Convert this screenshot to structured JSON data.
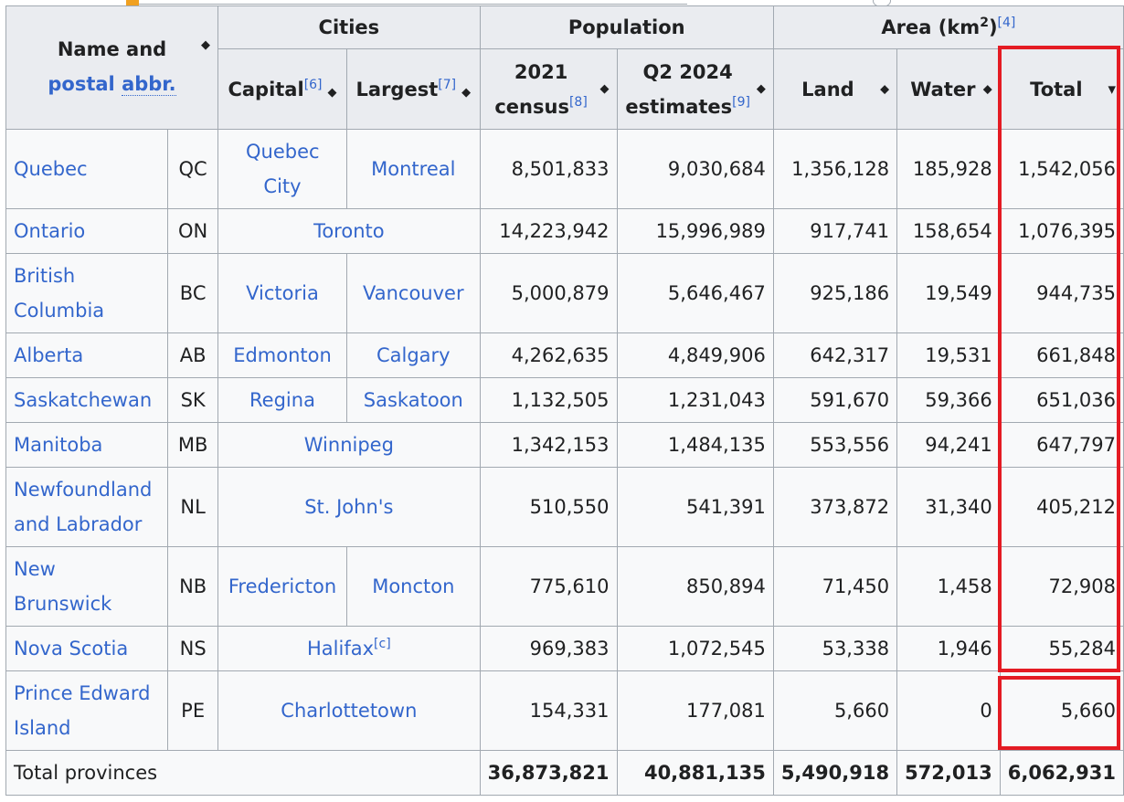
{
  "header": {
    "name_col": {
      "line1": "Name and",
      "line2a": "postal",
      "line2b": "abbr.",
      "sort_icon": "sort-both-icon"
    },
    "cities": "Cities",
    "population": "Population",
    "area": "Area (km",
    "area_sup": "2",
    "area_ref": "[4]",
    "capital": "Capital",
    "capital_ref": "[6]",
    "largest": "Largest",
    "largest_ref": "[7]",
    "census_line1": "2021",
    "census_line2": "census",
    "census_ref": "[8]",
    "estimate_line1": "Q2 2024",
    "estimate_line2": "estimates",
    "estimate_ref": "[9]",
    "land": "Land",
    "water": "Water",
    "total": "Total"
  },
  "rows": [
    {
      "name": "Quebec",
      "abbr": "QC",
      "capital": "Quebec City",
      "largest": "Montreal",
      "census": "8,501,833",
      "estimate": "9,030,684",
      "land": "1,356,128",
      "water": "185,928",
      "total": "1,542,056"
    },
    {
      "name": "Ontario",
      "abbr": "ON",
      "city": "Toronto",
      "census": "14,223,942",
      "estimate": "15,996,989",
      "land": "917,741",
      "water": "158,654",
      "total": "1,076,395"
    },
    {
      "name": "British Columbia",
      "abbr": "BC",
      "capital": "Victoria",
      "largest": "Vancouver",
      "census": "5,000,879",
      "estimate": "5,646,467",
      "land": "925,186",
      "water": "19,549",
      "total": "944,735"
    },
    {
      "name": "Alberta",
      "abbr": "AB",
      "capital": "Edmonton",
      "largest": "Calgary",
      "census": "4,262,635",
      "estimate": "4,849,906",
      "land": "642,317",
      "water": "19,531",
      "total": "661,848"
    },
    {
      "name": "Saskatchewan",
      "abbr": "SK",
      "capital": "Regina",
      "largest": "Saskatoon",
      "census": "1,132,505",
      "estimate": "1,231,043",
      "land": "591,670",
      "water": "59,366",
      "total": "651,036"
    },
    {
      "name": "Manitoba",
      "abbr": "MB",
      "city": "Winnipeg",
      "census": "1,342,153",
      "estimate": "1,484,135",
      "land": "553,556",
      "water": "94,241",
      "total": "647,797"
    },
    {
      "name": "Newfoundland and Labrador",
      "abbr": "NL",
      "city": "St. John's",
      "census": "510,550",
      "estimate": "541,391",
      "land": "373,872",
      "water": "31,340",
      "total": "405,212"
    },
    {
      "name": "New Brunswick",
      "abbr": "NB",
      "capital": "Fredericton",
      "largest": "Moncton",
      "census": "775,610",
      "estimate": "850,894",
      "land": "71,450",
      "water": "1,458",
      "total": "72,908"
    },
    {
      "name": "Nova Scotia",
      "abbr": "NS",
      "city": "Halifax",
      "city_ref": "[c]",
      "census": "969,383",
      "estimate": "1,072,545",
      "land": "53,338",
      "water": "1,946",
      "total": "55,284"
    },
    {
      "name": "Prince Edward Island",
      "abbr": "PE",
      "city": "Charlottetown",
      "census": "154,331",
      "estimate": "177,081",
      "land": "5,660",
      "water": "0",
      "total": "5,660"
    }
  ],
  "totals": {
    "label": "Total provinces",
    "census": "36,873,821",
    "estimate": "40,881,135",
    "land": "5,490,918",
    "water": "572,013",
    "total": "6,062,931"
  },
  "colors": {
    "link": "#3366cc",
    "header_bg": "#eaecf0",
    "cell_bg": "#f8f9fa",
    "border": "#a2a9b1",
    "highlight": "#e41b23"
  }
}
